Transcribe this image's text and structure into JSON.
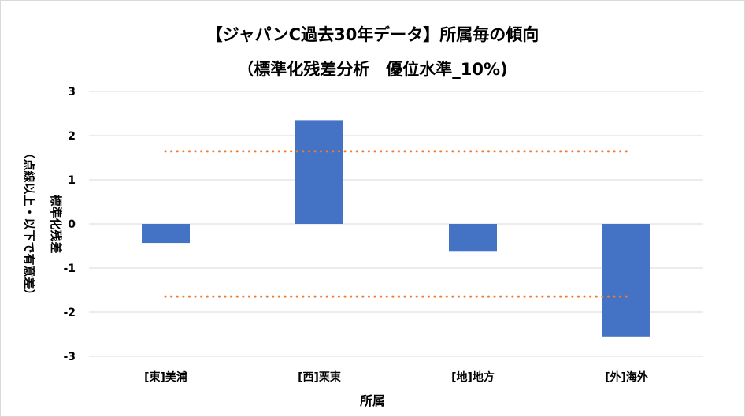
{
  "chart_data": {
    "type": "bar",
    "title": "【ジャパンC過去30年データ】所属毎の傾向",
    "subtitle": "（標準化残差分析　優位水準_10%)",
    "xlabel": "所属",
    "ylabel_line1": "標準化残差",
    "ylabel_line2": "（点線以上・以下で有意差）",
    "categories": [
      "[東]美浦",
      "[西]栗東",
      "[地]地方",
      "[外]海外"
    ],
    "values": [
      -0.43,
      2.35,
      -0.63,
      -2.55
    ],
    "ylim": [
      -3,
      3
    ],
    "yticks": [
      "3",
      "2",
      "1",
      "0",
      "-1",
      "-2",
      "-3"
    ],
    "ytick_values": [
      3,
      2,
      1,
      0,
      -1,
      -2,
      -3
    ],
    "reference_lines": [
      1.645,
      -1.645
    ],
    "grid": true,
    "colors": {
      "bar": "#4472c4",
      "reference": "#ed7d31",
      "grid": "#d9d9d9"
    }
  }
}
